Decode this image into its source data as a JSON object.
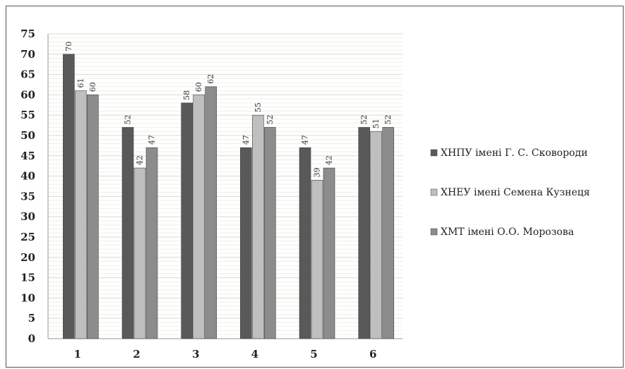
{
  "chart_data": {
    "type": "bar",
    "categories": [
      "1",
      "2",
      "3",
      "4",
      "5",
      "6"
    ],
    "series": [
      {
        "name": "ХНПУ імені Г. С. Сковороди",
        "values": [
          70,
          52,
          58,
          47,
          47,
          52
        ],
        "color": "#595959"
      },
      {
        "name": "ХНЕУ імені Семена Кузнеця",
        "values": [
          61,
          42,
          60,
          55,
          39,
          51
        ],
        "color": "#bfbfbf"
      },
      {
        "name": "ХМТ імені О.О. Морозова",
        "values": [
          60,
          47,
          62,
          52,
          42,
          52
        ],
        "color": "#8c8c8c"
      }
    ],
    "ylim": [
      0,
      75
    ],
    "yticks": [
      "0",
      "5",
      "10",
      "15",
      "20",
      "25",
      "30",
      "35",
      "40",
      "45",
      "50",
      "55",
      "60",
      "65",
      "70",
      "75"
    ],
    "grid": true,
    "legend": "right",
    "title": "",
    "xlabel": "",
    "ylabel": ""
  }
}
